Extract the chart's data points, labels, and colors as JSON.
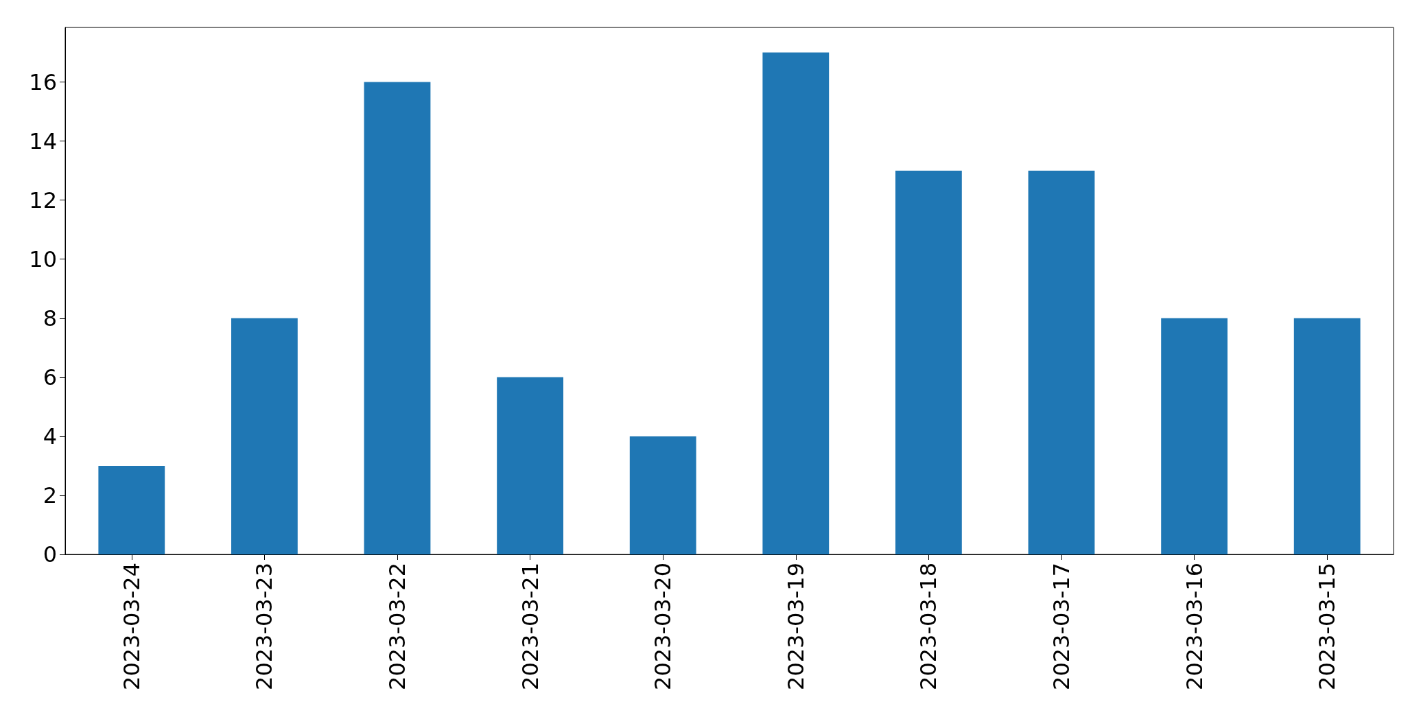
{
  "chart_data": {
    "type": "bar",
    "categories": [
      "2023-03-24",
      "2023-03-23",
      "2023-03-22",
      "2023-03-21",
      "2023-03-20",
      "2023-03-19",
      "2023-03-18",
      "2023-03-17",
      "2023-03-16",
      "2023-03-15"
    ],
    "values": [
      3,
      8,
      16,
      6,
      4,
      17,
      13,
      13,
      8,
      8
    ],
    "color": "#1f77b4",
    "ylim": [
      0,
      17.85
    ],
    "yticks": [
      0,
      2,
      4,
      6,
      8,
      10,
      12,
      14,
      16
    ],
    "grid": false
  }
}
